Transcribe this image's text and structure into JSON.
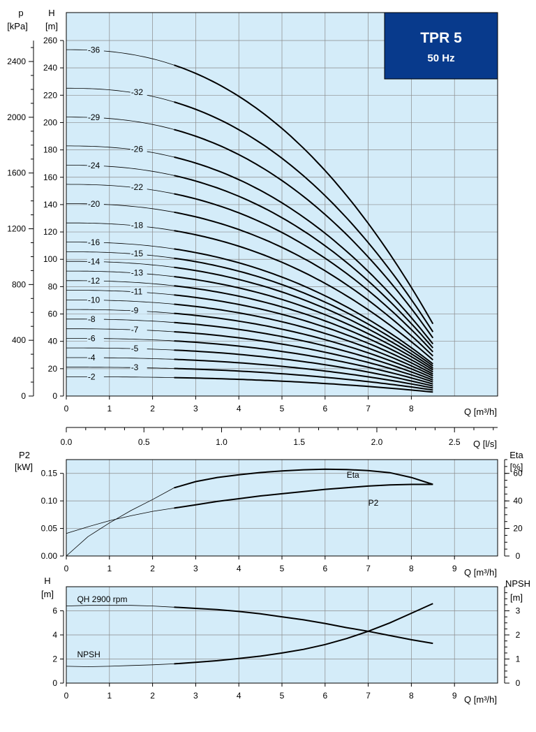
{
  "badge": {
    "title": "TPR 5",
    "subtitle": "50 Hz",
    "color": "#083a8c"
  },
  "colors": {
    "plot_bg": "#d4ecf9",
    "grid": "#8a8a8a",
    "curve": "#000000"
  },
  "axis_text": {
    "p": "p",
    "kpa": "[kPa]",
    "H": "H",
    "m": "[m]",
    "q_m3h": "Q [m³/h]",
    "q_ls": "Q [l/s]",
    "p2": "P2",
    "kw": "[kW]",
    "eta": "Eta",
    "pct": "[%]",
    "npsh": "NPSH"
  },
  "chart_data": [
    {
      "id": "head",
      "type": "line",
      "xlabel": "Q [m³/h]",
      "ylabel": "H [m]",
      "xlim": [
        0,
        10
      ],
      "ylim": [
        0,
        260
      ],
      "xticks": [
        "0",
        "1",
        "2",
        "3",
        "4",
        "5",
        "6",
        "7",
        "8"
      ],
      "yticks": [
        "0",
        "20",
        "40",
        "60",
        "80",
        "100",
        "120",
        "140",
        "160",
        "180",
        "200",
        "220",
        "240",
        "260"
      ],
      "y2label": "p [kPa]",
      "y2ticks": [
        "0",
        "400",
        "800",
        "1200",
        "1600",
        "2000",
        "2400"
      ],
      "x2label": "Q [l/s]",
      "x2ticks": [
        "0.0",
        "0.5",
        "1.0",
        "1.5",
        "2.0",
        "2.5"
      ],
      "recommended_range": [
        2.5,
        8.5
      ],
      "series": [
        {
          "name": "-2",
          "h0": 14.1,
          "h8_5": 2.9,
          "label_x": 0.5
        },
        {
          "name": "-3",
          "h0": 21.1,
          "h8_5": 4.4,
          "label_x": 1.5
        },
        {
          "name": "-4",
          "h0": 28.1,
          "h8_5": 5.9,
          "label_x": 0.5
        },
        {
          "name": "-5",
          "h0": 35.2,
          "h8_5": 7.3,
          "label_x": 1.5
        },
        {
          "name": "-6",
          "h0": 42.2,
          "h8_5": 8.8,
          "label_x": 0.5
        },
        {
          "name": "-7",
          "h0": 49.2,
          "h8_5": 10.3,
          "label_x": 1.5
        },
        {
          "name": "-8",
          "h0": 56.3,
          "h8_5": 11.7,
          "label_x": 0.5
        },
        {
          "name": "-9",
          "h0": 63.3,
          "h8_5": 13.2,
          "label_x": 1.5
        },
        {
          "name": "-10",
          "h0": 70.3,
          "h8_5": 14.7,
          "label_x": 0.5
        },
        {
          "name": "-11",
          "h0": 77.4,
          "h8_5": 16.1,
          "label_x": 1.5
        },
        {
          "name": "-12",
          "h0": 84.4,
          "h8_5": 17.6,
          "label_x": 0.5
        },
        {
          "name": "-13",
          "h0": 91.4,
          "h8_5": 19.1,
          "label_x": 1.5
        },
        {
          "name": "-14",
          "h0": 98.5,
          "h8_5": 20.5,
          "label_x": 0.5
        },
        {
          "name": "-15",
          "h0": 105.5,
          "h8_5": 22.0,
          "label_x": 1.5
        },
        {
          "name": "-16",
          "h0": 112.6,
          "h8_5": 23.5,
          "label_x": 0.5
        },
        {
          "name": "-18",
          "h0": 126.6,
          "h8_5": 26.4,
          "label_x": 1.5
        },
        {
          "name": "-20",
          "h0": 140.7,
          "h8_5": 29.3,
          "label_x": 0.5
        },
        {
          "name": "-22",
          "h0": 154.8,
          "h8_5": 32.3,
          "label_x": 1.5
        },
        {
          "name": "-24",
          "h0": 168.8,
          "h8_5": 35.2,
          "label_x": 0.5
        },
        {
          "name": "-26",
          "h0": 182.9,
          "h8_5": 38.1,
          "label_x": 1.5
        },
        {
          "name": "-29",
          "h0": 204.0,
          "h8_5": 42.5,
          "label_x": 0.5
        },
        {
          "name": "-32",
          "h0": 225.1,
          "h8_5": 46.9,
          "label_x": 1.5
        },
        {
          "name": "-36",
          "h0": 253.3,
          "h8_5": 52.8,
          "label_x": 0.5
        }
      ]
    },
    {
      "id": "power",
      "type": "line",
      "xlabel": "Q [m³/h]",
      "ylabel": "P2 [kW]",
      "y2label": "Eta [%]",
      "xlim": [
        0,
        10
      ],
      "ylim": [
        0,
        0.175
      ],
      "y2lim": [
        0,
        70
      ],
      "xticks": [
        "0",
        "1",
        "2",
        "3",
        "4",
        "5",
        "6",
        "7",
        "8",
        "9"
      ],
      "yticks": [
        "0.00",
        "0.05",
        "0.10",
        "0.15"
      ],
      "y2ticks": [
        "0",
        "20",
        "40",
        "60"
      ],
      "series": [
        {
          "name": "Eta",
          "axis": "right",
          "x": [
            0,
            0.5,
            1,
            1.5,
            2,
            2.5,
            3,
            3.5,
            4,
            4.5,
            5,
            5.5,
            6,
            6.5,
            7,
            7.5,
            8,
            8.5
          ],
          "y": [
            0,
            14,
            24,
            33,
            41,
            49.5,
            54,
            57,
            59,
            60.6,
            61.8,
            62.6,
            63,
            62.8,
            62,
            60.5,
            57,
            52
          ]
        },
        {
          "name": "P2",
          "axis": "left",
          "x": [
            0,
            0.5,
            1,
            1.5,
            2,
            2.5,
            3,
            3.5,
            4,
            4.5,
            5,
            5.5,
            6,
            6.5,
            7,
            7.5,
            8,
            8.5
          ],
          "y": [
            0.041,
            0.053,
            0.064,
            0.073,
            0.081,
            0.087,
            0.093,
            0.099,
            0.104,
            0.109,
            0.113,
            0.117,
            0.121,
            0.124,
            0.127,
            0.129,
            0.13,
            0.13
          ]
        }
      ]
    },
    {
      "id": "npsh",
      "type": "line",
      "xlabel": "Q [m³/h]",
      "ylabel": "H [m]",
      "y2label": "NPSH [m]",
      "xlim": [
        0,
        10
      ],
      "ylim": [
        0,
        8
      ],
      "y2lim": [
        0,
        4
      ],
      "xticks": [
        "0",
        "1",
        "2",
        "3",
        "4",
        "5",
        "6",
        "7",
        "8",
        "9"
      ],
      "yticks": [
        "0",
        "2",
        "4",
        "6"
      ],
      "y2ticks": [
        "0",
        "1",
        "2",
        "3"
      ],
      "series": [
        {
          "name": "QH 2900 rpm",
          "axis": "left",
          "x": [
            0,
            0.5,
            1,
            1.5,
            2,
            2.5,
            3,
            3.5,
            4,
            4.5,
            5,
            5.5,
            6,
            6.5,
            7,
            7.5,
            8,
            8.5
          ],
          "y": [
            6.4,
            6.45,
            6.45,
            6.45,
            6.4,
            6.3,
            6.2,
            6.1,
            5.95,
            5.75,
            5.5,
            5.25,
            4.95,
            4.6,
            4.3,
            3.95,
            3.6,
            3.3
          ]
        },
        {
          "name": "NPSH",
          "axis": "right",
          "x": [
            0,
            0.5,
            1,
            1.5,
            2,
            2.5,
            3,
            3.5,
            4,
            4.5,
            5,
            5.5,
            6,
            6.5,
            7,
            7.5,
            8,
            8.5
          ],
          "y": [
            0.7,
            0.68,
            0.7,
            0.73,
            0.76,
            0.8,
            0.86,
            0.93,
            1.02,
            1.12,
            1.25,
            1.4,
            1.6,
            1.85,
            2.15,
            2.5,
            2.9,
            3.3
          ]
        }
      ]
    }
  ]
}
